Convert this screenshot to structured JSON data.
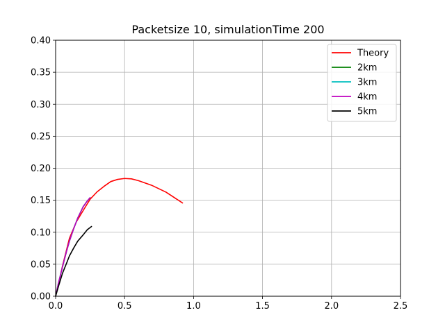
{
  "chart_data": {
    "type": "line",
    "title": "Packetsize 10, simulationTime 200",
    "xlabel": "",
    "ylabel": "",
    "xlim": [
      0,
      2.5
    ],
    "ylim": [
      0,
      0.4
    ],
    "xticks": [
      0.0,
      0.5,
      1.0,
      1.5,
      2.0,
      2.5
    ],
    "xtick_labels": [
      "0.0",
      "0.5",
      "1.0",
      "1.5",
      "2.0",
      "2.5"
    ],
    "yticks": [
      0.0,
      0.05,
      0.1,
      0.15,
      0.2,
      0.25,
      0.3,
      0.35,
      0.4
    ],
    "ytick_labels": [
      "0.00",
      "0.05",
      "0.10",
      "0.15",
      "0.20",
      "0.25",
      "0.30",
      "0.35",
      "0.40"
    ],
    "grid": true,
    "legend_position": "top-right",
    "series": [
      {
        "name": "Theory",
        "color": "#ff0000",
        "x": [
          0,
          0.05,
          0.1,
          0.15,
          0.2,
          0.25,
          0.3,
          0.35,
          0.4,
          0.45,
          0.5,
          0.55,
          0.6,
          0.7,
          0.8,
          0.92
        ],
        "y": [
          0,
          0.0475,
          0.0905,
          0.1161,
          0.134,
          0.1516,
          0.163,
          0.1716,
          0.1792,
          0.1826,
          0.184,
          0.1834,
          0.1806,
          0.173,
          0.1627,
          0.1457
        ]
      },
      {
        "name": "2km",
        "color": "#008000",
        "x": [
          0,
          0.02,
          0.05,
          0.08,
          0.1,
          0.13,
          0.16,
          0.2,
          0.23,
          0.25
        ],
        "y": [
          0,
          0.02,
          0.046,
          0.071,
          0.086,
          0.105,
          0.122,
          0.14,
          0.149,
          0.154
        ]
      },
      {
        "name": "3km",
        "color": "#00bfbf",
        "x": [
          0,
          0.02,
          0.05,
          0.08,
          0.1,
          0.13,
          0.16,
          0.2,
          0.23,
          0.25
        ],
        "y": [
          0,
          0.02,
          0.046,
          0.071,
          0.086,
          0.105,
          0.122,
          0.14,
          0.149,
          0.154
        ]
      },
      {
        "name": "4km",
        "color": "#bf00bf",
        "x": [
          0,
          0.02,
          0.05,
          0.08,
          0.1,
          0.13,
          0.16,
          0.2,
          0.23,
          0.25
        ],
        "y": [
          0,
          0.02,
          0.046,
          0.071,
          0.086,
          0.105,
          0.122,
          0.14,
          0.149,
          0.154
        ]
      },
      {
        "name": "5km",
        "color": "#000000",
        "x": [
          0,
          0.02,
          0.05,
          0.08,
          0.1,
          0.13,
          0.16,
          0.2,
          0.23,
          0.26
        ],
        "y": [
          0,
          0.015,
          0.036,
          0.052,
          0.063,
          0.075,
          0.086,
          0.096,
          0.104,
          0.109
        ]
      }
    ]
  }
}
